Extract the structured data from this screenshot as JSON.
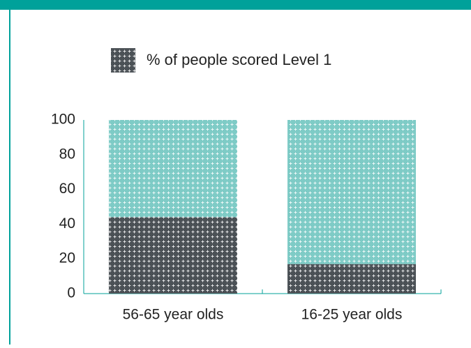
{
  "chart_data": {
    "type": "bar",
    "stacked": true,
    "categories": [
      "56-65 year olds",
      "16-25 year olds"
    ],
    "series": [
      {
        "name": "% of people scored Level 1",
        "color": "#4b5156",
        "values": [
          44,
          17
        ]
      },
      {
        "color": "#7ecbc6",
        "values": [
          56,
          83
        ]
      }
    ],
    "ylim": [
      0,
      100
    ],
    "yticks": [
      0,
      20,
      40,
      60,
      80,
      100
    ]
  }
}
